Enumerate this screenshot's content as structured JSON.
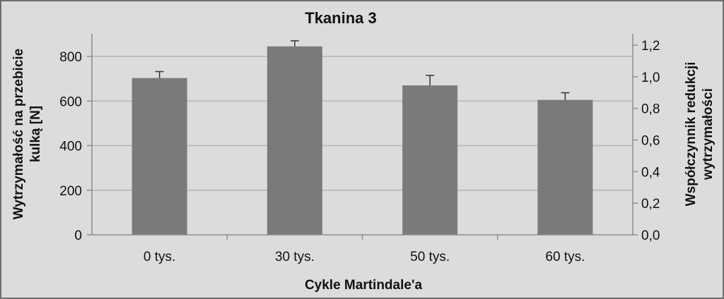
{
  "chart_data": {
    "type": "bar",
    "title": "Tkanina 3",
    "xlabel": "Cykle Martindale'a",
    "ylabel_lines": [
      "Wytrzymałość na przebicie",
      "kulką [N]"
    ],
    "y2label_lines": [
      "Współczynnik redukcji",
      "wytrzymałości"
    ],
    "categories": [
      "0 tys.",
      "30 tys.",
      "50 tys.",
      "60 tys."
    ],
    "values": [
      703,
      845,
      670,
      605
    ],
    "error_upper": [
      732,
      870,
      715,
      637
    ],
    "ylim": [
      0,
      800
    ],
    "yticks": [
      0,
      200,
      400,
      600,
      800
    ],
    "y2lim": [
      0.0,
      1.2
    ],
    "y2ticks": [
      "0,0",
      "0,2",
      "0,4",
      "0,6",
      "0,8",
      "1,0",
      "1,2"
    ],
    "grid": true,
    "colors": {
      "bar": "#7a7a7a",
      "grid": "#b5b5b5",
      "axis": "#8c8c8c",
      "error": "#333333"
    }
  }
}
